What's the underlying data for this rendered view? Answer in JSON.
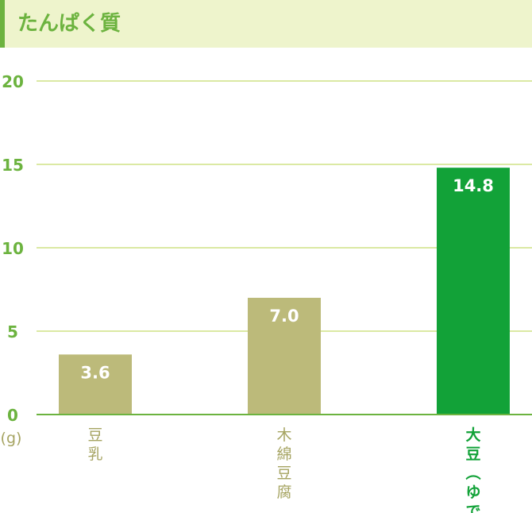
{
  "header": {
    "title": "たんぱく質"
  },
  "chart_data": {
    "type": "bar",
    "categories": [
      "豆乳",
      "木綿豆腐",
      "大豆（ゆで）"
    ],
    "values": [
      3.6,
      7.0,
      14.8
    ],
    "value_labels": [
      "3.6",
      "7.0",
      "14.8"
    ],
    "ylim": [
      0,
      20
    ],
    "yticks": [
      "0",
      "5",
      "10",
      "15",
      "20"
    ],
    "unit": "(g)",
    "grid": true,
    "colors": {
      "bar": "#bcba7a",
      "highlight_bar": "#12a238",
      "axis_text": "#6cb33f",
      "label_text": "#a6a462",
      "grid": "#dbe9a3",
      "header_bg": "#eef4cc"
    },
    "highlight_index": 2
  }
}
